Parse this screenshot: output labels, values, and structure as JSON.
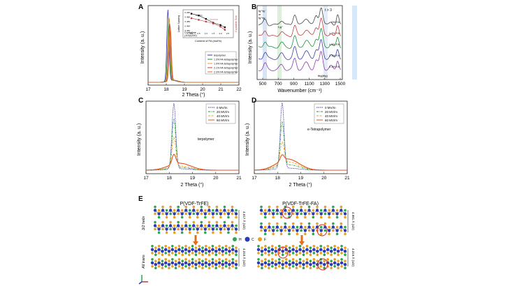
{
  "panels": {
    "A": {
      "label": "A",
      "xlabel": "2 Theta (°)",
      "ylabel": "Intensity (a. u.)",
      "xticks": [
        "17",
        "18",
        "19",
        "20",
        "21",
        "22"
      ],
      "legend": [
        "terpolymer",
        "1.3% FA-tetrapolymer",
        "1.9% FA-tetrapolymer",
        "2.1% FA-tetrapolymer",
        "2.3% FA-tetrapolymer"
      ],
      "colors": [
        "#3a3aa8",
        "#1b8f3a",
        "#e8a020",
        "#c23a3a",
        "#e07020"
      ],
      "inset": {
        "xlabel": "Content of FA (mol%)",
        "ylabel_left": "Lattice Spacing",
        "ylabel_right": "Crystallite Size",
        "xticks": [
          "0.0",
          "0.5",
          "1.0",
          "1.5",
          "2.0",
          "2.5"
        ],
        "yticks_left": [
          "0.490",
          "0.488",
          "0.486",
          "0.484",
          "0.482"
        ],
        "annotation": [
          "Crystalline",
          "(110)/(200)"
        ],
        "left_series": [
          0.4895,
          0.4887,
          0.4872,
          0.4855,
          0.4845,
          0.4835
        ],
        "right_series": [
          0.4875,
          0.4868,
          0.486,
          0.4852,
          0.4838,
          0.4824
        ],
        "x": [
          0.0,
          0.5,
          1.0,
          1.5,
          2.0,
          2.3
        ]
      }
    },
    "B": {
      "label": "B",
      "xlabel": "Wavenumber (cm⁻¹)",
      "ylabel": "Intensity (a. u.)",
      "xticks": [
        "500",
        "700",
        "900",
        "1100",
        "1300",
        "1500"
      ],
      "band_labels": [
        "tg⁺tg⁻",
        "or",
        "tg⁺tg⁻",
        "t₃g⁺",
        "t > 3",
        "tttg(tttg)"
      ],
      "trace_labels": [
        "0% FA",
        "1.3% FA",
        "1.9% FA",
        "2.1% FA",
        "2.3% FA"
      ],
      "colors": [
        "#444444",
        "#c23a3a",
        "#1b8f3a",
        "#3a3aa8",
        "#8a3aa8"
      ]
    },
    "C": {
      "label": "C",
      "xlabel": "2 Theta (°)",
      "ylabel": "Intensity (a. u.)",
      "xticks": [
        "17",
        "18",
        "19",
        "20",
        "21"
      ],
      "name": "terpolymer",
      "legend": [
        "0 MV/m",
        "20 MV/m",
        "40 MV/m",
        "60 MV/m"
      ],
      "colors": [
        "#3a3aa8",
        "#1b8f3a",
        "#e8a020",
        "#e05020"
      ]
    },
    "D": {
      "label": "D",
      "xlabel": "2 Theta (°)",
      "ylabel": "Intensity (a. u.)",
      "xticks": [
        "17",
        "18",
        "19",
        "20",
        "21"
      ],
      "name": "e-Tetrapolymer",
      "legend": [
        "0 MV/m",
        "20 MV/m",
        "40 MV/m",
        "60 MV/m"
      ],
      "colors": [
        "#3a3aa8",
        "#1b8f3a",
        "#e8a020",
        "#e05020"
      ]
    },
    "E": {
      "label": "E",
      "title_left": "P(VDF-TrFE)",
      "title_right": "P(VDF-TrFE-FA)",
      "row_top": "3/2 helix",
      "row_bottom": "All trans",
      "spacing_top_left": "4.617 Å (a/2)",
      "spacing_top_right": "4.981 Å (a/2)",
      "spacing_bottom_left": "4.310 Å (a/2)",
      "spacing_bottom_right": "4.319 Å (a/2)",
      "atom_legend": [
        "H",
        "C",
        "F"
      ],
      "atom_colors": [
        "#2aa84a",
        "#2a3ab8",
        "#e8a020"
      ]
    }
  }
}
